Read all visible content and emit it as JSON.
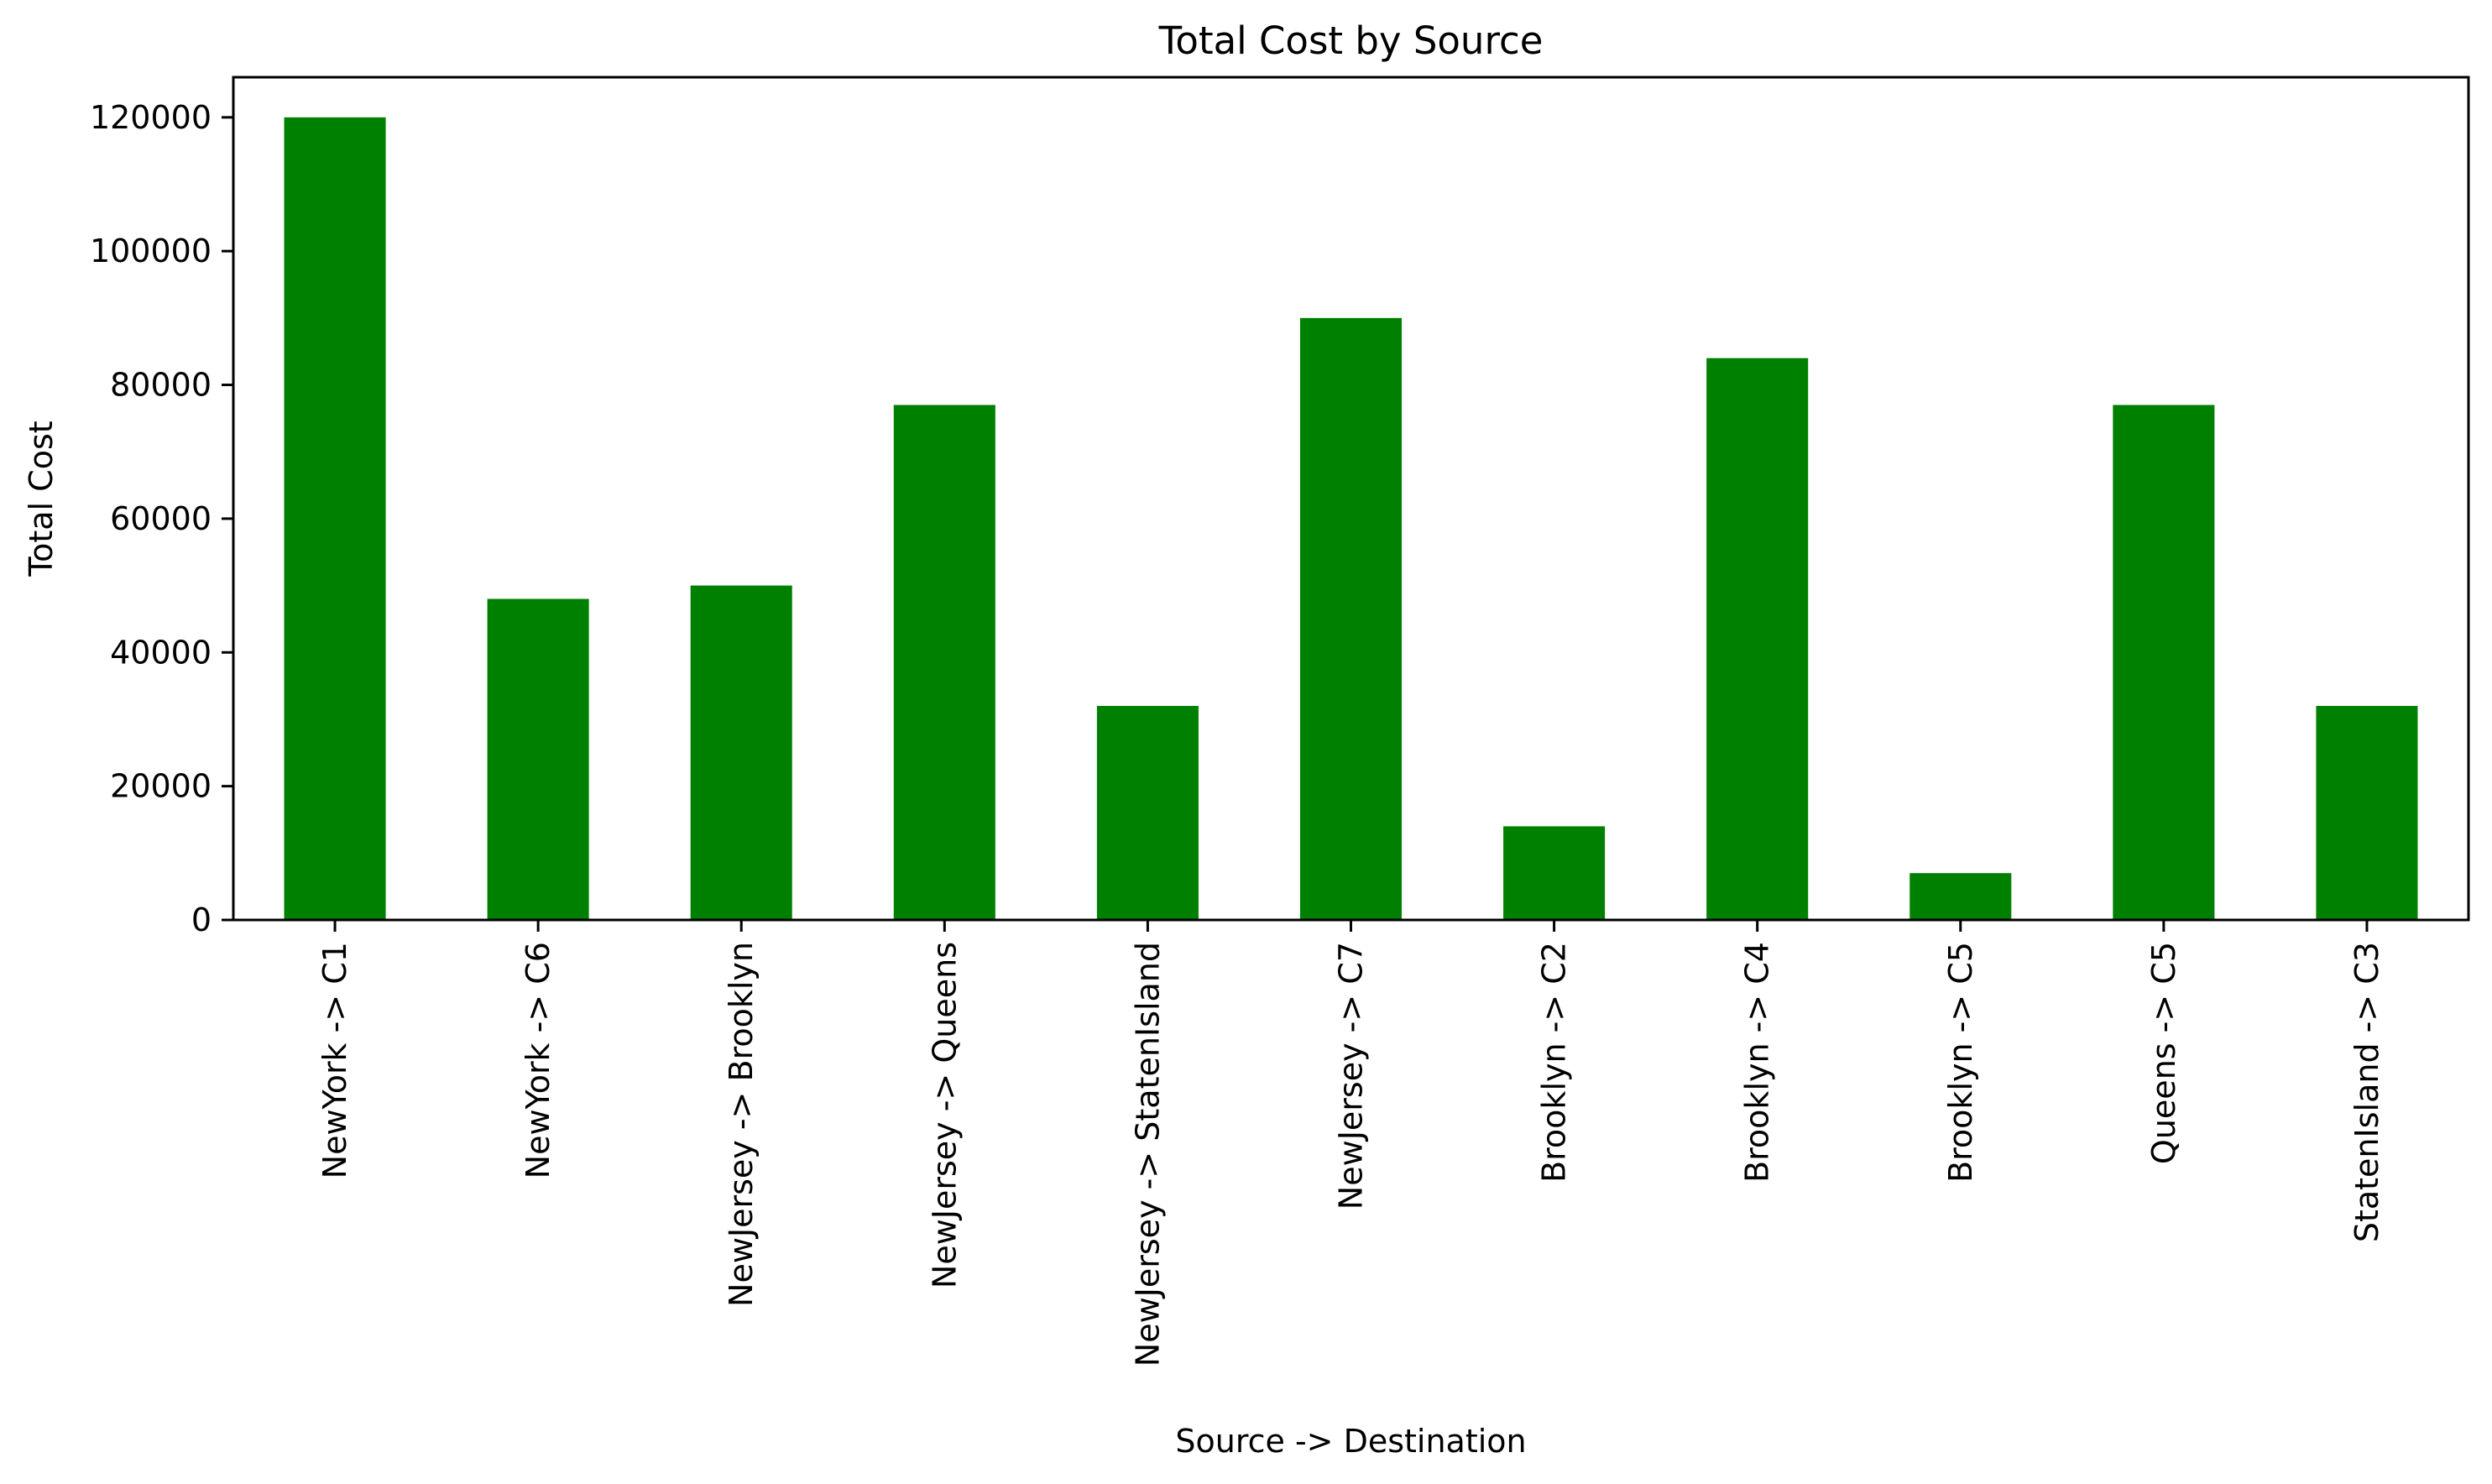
{
  "chart_data": {
    "type": "bar",
    "title": "Total Cost by Source",
    "xlabel": "Source -> Destination",
    "ylabel": "Total Cost",
    "categories": [
      "NewYork -> C1",
      "NewYork -> C6",
      "NewJersey -> Brooklyn",
      "NewJersey -> Queens",
      "NewJersey -> StatenIsland",
      "NewJersey -> C7",
      "Brooklyn -> C2",
      "Brooklyn -> C4",
      "Brooklyn -> C5",
      "Queens -> C5",
      "StatenIsland -> C3"
    ],
    "values": [
      120000,
      48000,
      50000,
      77000,
      32000,
      90000,
      14000,
      84000,
      7000,
      77000,
      32000
    ],
    "ylim": [
      0,
      126000
    ],
    "yticks": [
      0,
      20000,
      40000,
      60000,
      80000,
      100000,
      120000
    ],
    "ytick_labels": [
      "0",
      "20000",
      "40000",
      "60000",
      "80000",
      "100000",
      "120000"
    ],
    "grid": false,
    "legend": "none",
    "colors": {
      "bar": "#008000",
      "axes": "#000000",
      "background": "#ffffff"
    }
  }
}
